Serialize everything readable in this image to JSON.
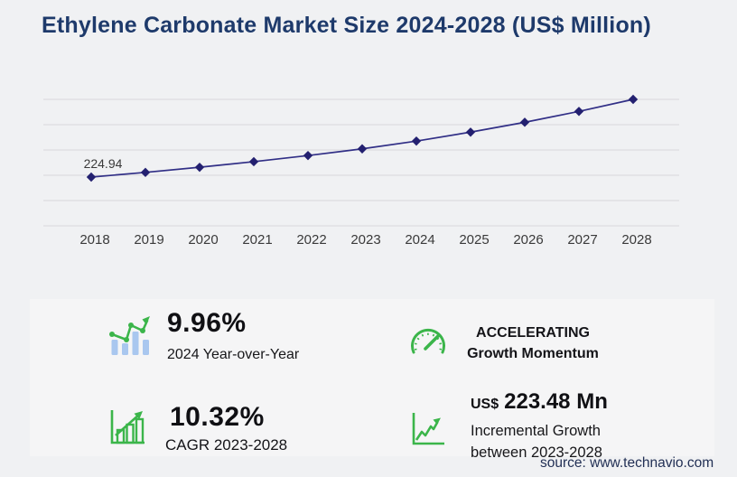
{
  "title": "Ethylene Carbonate Market Size 2024-2028 (US$ Million)",
  "chart_data": {
    "type": "line",
    "title": "Ethylene Carbonate Market Size 2024-2028 (US$ Million)",
    "categories": [
      "2018",
      "2019",
      "2020",
      "2021",
      "2022",
      "2023",
      "2024",
      "2025",
      "2026",
      "2027",
      "2028"
    ],
    "values": [
      224.94,
      246.08,
      269.21,
      294.52,
      322.21,
      352.45,
      387.56,
      427.92,
      472.45,
      521.62,
      575.93
    ],
    "labeled_point": {
      "year": "2018",
      "label": "224.94"
    },
    "xlabel": "",
    "ylabel": "",
    "unit": "US$ Million",
    "ylim": [
      0,
      600
    ],
    "grid": true,
    "legend": "none",
    "marker": "diamond"
  },
  "stats": {
    "yoy": {
      "value": "9.96%",
      "label": "2024 Year-over-Year"
    },
    "momentum": {
      "line1": "ACCELERATING",
      "line2": "Growth Momentum"
    },
    "cagr": {
      "value": "10.32%",
      "label": "CAGR 2023-2028"
    },
    "incremental": {
      "currency": "US$",
      "value": "223.48 Mn",
      "line1": "Incremental Growth",
      "line2": "between 2023-2028"
    }
  },
  "source": "source: www.technavio.com",
  "colors": {
    "title_navy": "#1e3a6b",
    "line": "#312f86",
    "marker": "#232070",
    "grid": "#d7d7db",
    "green": "#3bb54a",
    "light_blue": "#a9c7ef",
    "panel_bg": "#f5f5f6",
    "page_bg": "#f0f1f3"
  }
}
